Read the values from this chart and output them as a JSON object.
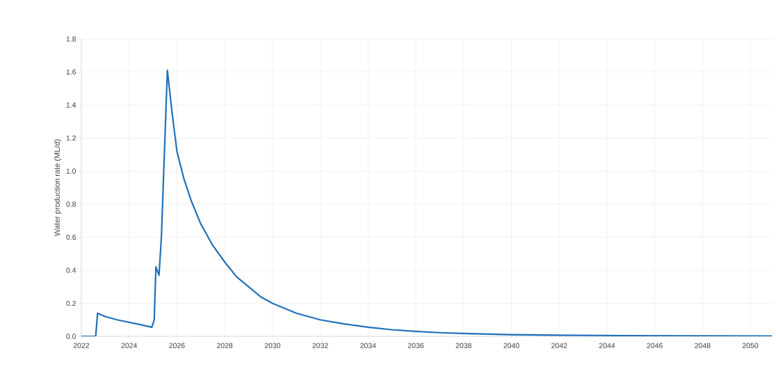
{
  "chart_data": {
    "type": "line",
    "ylabel": "Water production rate (ML/d)",
    "color": "#1f6fba",
    "grid": true,
    "marker": "none",
    "line_style": "solid",
    "x": [
      2022,
      2022.6,
      2022.68,
      2023,
      2023.5,
      2024,
      2024.5,
      2024.95,
      2025.05,
      2025.12,
      2025.25,
      2025.35,
      2025.6,
      2025.8,
      2026,
      2026.3,
      2026.6,
      2027,
      2027.5,
      2028,
      2028.5,
      2029,
      2029.5,
      2030,
      2031,
      2032,
      2033,
      2034,
      2035,
      2036,
      2037,
      2038,
      2040,
      2042,
      2045,
      2048,
      2050.9
    ],
    "values": [
      0,
      0,
      0.14,
      0.12,
      0.1,
      0.085,
      0.07,
      0.055,
      0.1,
      0.42,
      0.37,
      0.6,
      1.61,
      1.35,
      1.12,
      0.95,
      0.82,
      0.68,
      0.55,
      0.45,
      0.36,
      0.3,
      0.24,
      0.2,
      0.14,
      0.1,
      0.075,
      0.055,
      0.04,
      0.03,
      0.022,
      0.017,
      0.01,
      0.007,
      0.004,
      0.003,
      0.002
    ],
    "xlim": [
      2022,
      2050.9
    ],
    "ylim": [
      0,
      1.8
    ],
    "xticks": [
      2022,
      2024,
      2026,
      2028,
      2030,
      2032,
      2034,
      2036,
      2038,
      2040,
      2042,
      2044,
      2046,
      2048,
      2050
    ],
    "yticks": [
      {
        "value": 0,
        "label": "0.0"
      },
      {
        "value": 0.2,
        "label": "0.2"
      },
      {
        "value": 0.4,
        "label": "0.4"
      },
      {
        "value": 0.6,
        "label": "0.6"
      },
      {
        "value": 0.8,
        "label": "0.8"
      },
      {
        "value": 1.0,
        "label": "1.0"
      },
      {
        "value": 1.2,
        "label": "1.2"
      },
      {
        "value": 1.4,
        "label": "1.4"
      },
      {
        "value": 1.6,
        "label": "1.6"
      },
      {
        "value": 1.8,
        "label": "1.8"
      }
    ]
  }
}
